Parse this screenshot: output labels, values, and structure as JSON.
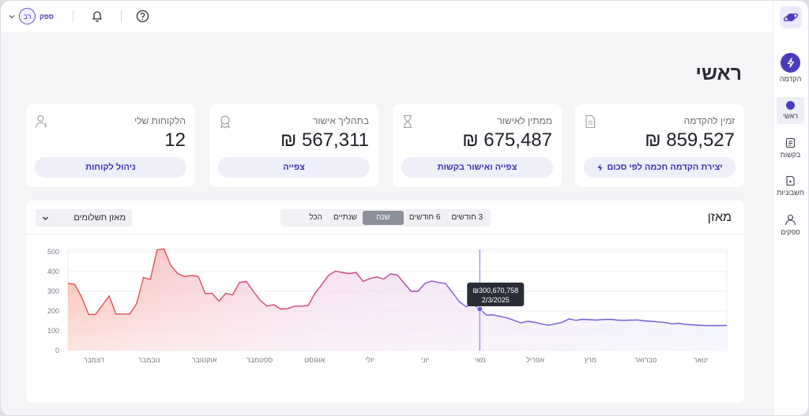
{
  "header": {
    "user_initials": "רב",
    "user_name": "ספק"
  },
  "sidebar": {
    "items": [
      {
        "label": "הקדמה",
        "icon": "lightning-icon"
      },
      {
        "label": "ראשי",
        "icon": "home-dot-icon"
      },
      {
        "label": "בקשות",
        "icon": "requests-icon"
      },
      {
        "label": "חשבוניות",
        "icon": "invoice-icon"
      },
      {
        "label": "ספקים",
        "icon": "suppliers-icon"
      }
    ]
  },
  "page": {
    "title": "ראשי"
  },
  "cards": [
    {
      "title": "זמין להקדמה",
      "value": "859,527 ₪",
      "button": "יצירת הקדמה חכמה לפי סכום",
      "icon": "document-icon"
    },
    {
      "title": "ממתין לאישור",
      "value": "675,487 ₪",
      "button": "צפייה ואישור בקשות",
      "icon": "hourglass-icon"
    },
    {
      "title": "בתהליך אישור",
      "value": "567,311 ₪",
      "button": "צפייה",
      "icon": "award-icon"
    },
    {
      "title": "הלקוחות שלי",
      "value": "12",
      "button": "ניהול לקוחות",
      "icon": "user-icon"
    }
  ],
  "balance": {
    "title": "מאזן",
    "tabs": [
      "3 חודשים",
      "6 חודשים",
      "שנה",
      "שנתיים",
      "הכל"
    ],
    "active_tab": "שנה",
    "select_value": "מאזן תשלומים"
  },
  "colors": {
    "accent": "#4b3bbd",
    "line_start": "#e8554b",
    "line_end": "#6b5be0"
  },
  "chart_data": {
    "type": "area",
    "ylim": [
      0,
      500
    ],
    "yticks": [
      "0",
      "100",
      "200",
      "300",
      "400",
      "500"
    ],
    "xticks": [
      "ינואר",
      "פברואר",
      "מרץ",
      "אפריל",
      "מאי",
      "יוני",
      "יולי",
      "אוגוסט",
      "ספטמבר",
      "אוקטובר",
      "נובמבר",
      "דצמבר"
    ],
    "grid": true,
    "tooltip": {
      "value": "₪300,670,758",
      "date": "2/3/2025"
    },
    "series": [
      {
        "values": [
          340,
          335,
          270,
          183,
          183,
          228,
          277,
          185,
          185,
          185,
          237,
          370,
          360,
          510,
          515,
          430,
          390,
          375,
          380,
          375,
          288,
          290,
          250,
          290,
          282,
          345,
          350,
          300,
          255,
          225,
          232,
          210,
          212,
          225,
          225,
          228,
          290,
          335,
          382,
          402,
          395,
          390,
          395,
          350,
          365,
          373,
          362,
          388,
          383,
          340,
          300,
          300,
          340,
          352,
          345,
          340,
          295,
          248,
          222,
          234,
          210,
          180,
          180,
          173,
          165,
          153,
          140,
          148,
          143,
          135,
          128,
          135,
          143,
          160,
          153,
          158,
          156,
          154,
          157,
          158,
          154,
          153,
          154,
          155,
          150,
          148,
          145,
          142,
          135,
          138,
          132,
          130,
          128,
          126,
          126,
          126,
          127
        ]
      }
    ]
  }
}
